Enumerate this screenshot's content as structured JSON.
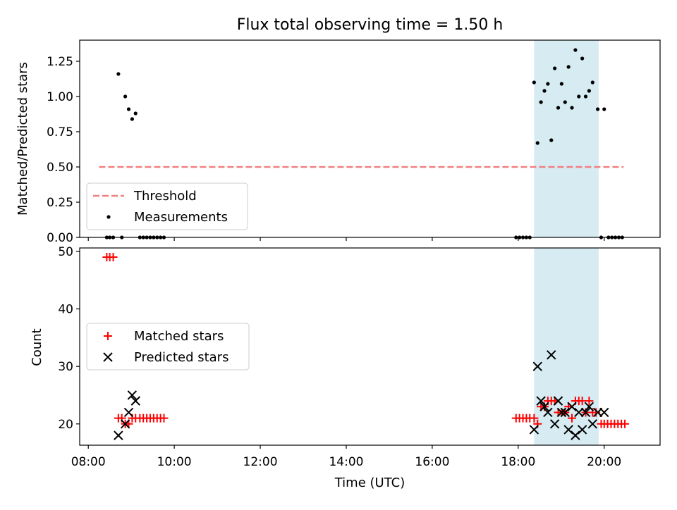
{
  "chart_data": [
    {
      "type": "scatter",
      "title": "Flux total observing time = 1.50 h",
      "ylabel": "Matched/Predicted stars",
      "xlim_hours": [
        7.8,
        21.3
      ],
      "ylim": [
        0,
        1.4
      ],
      "y_ticks": [
        "0.00",
        "0.25",
        "0.50",
        "0.75",
        "1.00",
        "1.25"
      ],
      "shaded_interval_hours": [
        18.37,
        19.87
      ],
      "threshold": {
        "name": "Threshold",
        "value": 0.5,
        "x_range_hours": [
          8.25,
          20.45
        ],
        "color": "#f08080"
      },
      "series": [
        {
          "name": "Measurements",
          "color": "#000000",
          "points": [
            [
              8.43,
              0
            ],
            [
              8.5,
              0
            ],
            [
              8.58,
              0
            ],
            [
              8.7,
              1.16
            ],
            [
              8.78,
              0
            ],
            [
              8.86,
              1.0
            ],
            [
              8.94,
              0.91
            ],
            [
              9.02,
              0.84
            ],
            [
              9.1,
              0.88
            ],
            [
              9.2,
              0
            ],
            [
              9.28,
              0
            ],
            [
              9.36,
              0
            ],
            [
              9.44,
              0
            ],
            [
              9.52,
              0
            ],
            [
              9.6,
              0
            ],
            [
              9.68,
              0
            ],
            [
              9.76,
              0
            ],
            [
              17.95,
              0
            ],
            [
              18.03,
              0
            ],
            [
              18.11,
              0
            ],
            [
              18.19,
              0
            ],
            [
              18.27,
              0
            ],
            [
              18.37,
              1.1
            ],
            [
              18.45,
              0.67
            ],
            [
              18.53,
              0.96
            ],
            [
              18.61,
              1.04
            ],
            [
              18.69,
              1.09
            ],
            [
              18.77,
              0.69
            ],
            [
              18.85,
              1.2
            ],
            [
              18.93,
              0.92
            ],
            [
              19.01,
              1.09
            ],
            [
              19.09,
              0.96
            ],
            [
              19.17,
              1.21
            ],
            [
              19.25,
              0.92
            ],
            [
              19.33,
              1.33
            ],
            [
              19.41,
              1.0
            ],
            [
              19.49,
              1.27
            ],
            [
              19.57,
              1.0
            ],
            [
              19.65,
              1.04
            ],
            [
              19.73,
              1.1
            ],
            [
              19.85,
              0.91
            ],
            [
              19.93,
              0
            ],
            [
              20.0,
              0.91
            ],
            [
              20.1,
              0
            ],
            [
              20.18,
              0
            ],
            [
              20.26,
              0
            ],
            [
              20.34,
              0
            ],
            [
              20.42,
              0
            ]
          ]
        }
      ],
      "legend": {
        "location": "lower-left",
        "entries": [
          "Threshold",
          "Measurements"
        ]
      }
    },
    {
      "type": "scatter",
      "xlabel": "Time (UTC)",
      "ylabel": "Count",
      "xlim_hours": [
        7.8,
        21.3
      ],
      "ylim": [
        16.3,
        50.6
      ],
      "y_ticks": [
        "20",
        "30",
        "40",
        "50"
      ],
      "x_ticks": [
        {
          "hours": 8,
          "label": "08:00"
        },
        {
          "hours": 10,
          "label": "10:00"
        },
        {
          "hours": 12,
          "label": "12:00"
        },
        {
          "hours": 14,
          "label": "14:00"
        },
        {
          "hours": 16,
          "label": "16:00"
        },
        {
          "hours": 18,
          "label": "18:00"
        },
        {
          "hours": 20,
          "label": "20:00"
        }
      ],
      "shaded_interval_hours": [
        18.37,
        19.87
      ],
      "series": [
        {
          "name": "Matched stars",
          "marker": "plus",
          "color": "#ff0000",
          "points": [
            [
              8.43,
              49
            ],
            [
              8.5,
              49
            ],
            [
              8.58,
              49
            ],
            [
              8.7,
              21
            ],
            [
              8.78,
              21
            ],
            [
              8.86,
              20
            ],
            [
              8.94,
              20
            ],
            [
              9.02,
              21
            ],
            [
              9.1,
              21
            ],
            [
              9.2,
              21
            ],
            [
              9.28,
              21
            ],
            [
              9.36,
              21
            ],
            [
              9.44,
              21
            ],
            [
              9.52,
              21
            ],
            [
              9.6,
              21
            ],
            [
              9.68,
              21
            ],
            [
              9.76,
              21
            ],
            [
              17.95,
              21
            ],
            [
              18.03,
              21
            ],
            [
              18.11,
              21
            ],
            [
              18.19,
              21
            ],
            [
              18.27,
              21
            ],
            [
              18.37,
              21
            ],
            [
              18.45,
              20
            ],
            [
              18.53,
              23
            ],
            [
              18.61,
              23
            ],
            [
              18.69,
              24
            ],
            [
              18.77,
              24
            ],
            [
              18.85,
              24
            ],
            [
              18.93,
              22
            ],
            [
              19.01,
              22
            ],
            [
              19.09,
              22
            ],
            [
              19.17,
              23
            ],
            [
              19.25,
              21
            ],
            [
              19.33,
              24
            ],
            [
              19.41,
              24
            ],
            [
              19.49,
              24
            ],
            [
              19.57,
              22
            ],
            [
              19.65,
              24
            ],
            [
              19.73,
              22
            ],
            [
              19.81,
              22
            ],
            [
              19.93,
              20
            ],
            [
              20.0,
              20
            ],
            [
              20.08,
              20
            ],
            [
              20.16,
              20
            ],
            [
              20.24,
              20
            ],
            [
              20.32,
              20
            ],
            [
              20.4,
              20
            ],
            [
              20.48,
              20
            ]
          ]
        },
        {
          "name": "Predicted stars",
          "marker": "x",
          "color": "#000000",
          "points": [
            [
              8.7,
              18
            ],
            [
              8.86,
              20
            ],
            [
              8.94,
              22
            ],
            [
              9.02,
              25
            ],
            [
              9.1,
              24
            ],
            [
              18.37,
              19
            ],
            [
              18.45,
              30
            ],
            [
              18.53,
              24
            ],
            [
              18.61,
              23
            ],
            [
              18.69,
              22
            ],
            [
              18.77,
              32
            ],
            [
              18.85,
              20
            ],
            [
              18.93,
              24
            ],
            [
              19.01,
              22
            ],
            [
              19.09,
              22
            ],
            [
              19.17,
              19
            ],
            [
              19.25,
              23
            ],
            [
              19.33,
              18
            ],
            [
              19.41,
              22
            ],
            [
              19.49,
              19
            ],
            [
              19.57,
              22
            ],
            [
              19.65,
              23
            ],
            [
              19.73,
              20
            ],
            [
              19.85,
              22
            ],
            [
              20.0,
              22
            ]
          ]
        }
      ],
      "legend": {
        "location": "center-left",
        "entries": [
          "Matched stars",
          "Predicted stars"
        ]
      }
    }
  ]
}
